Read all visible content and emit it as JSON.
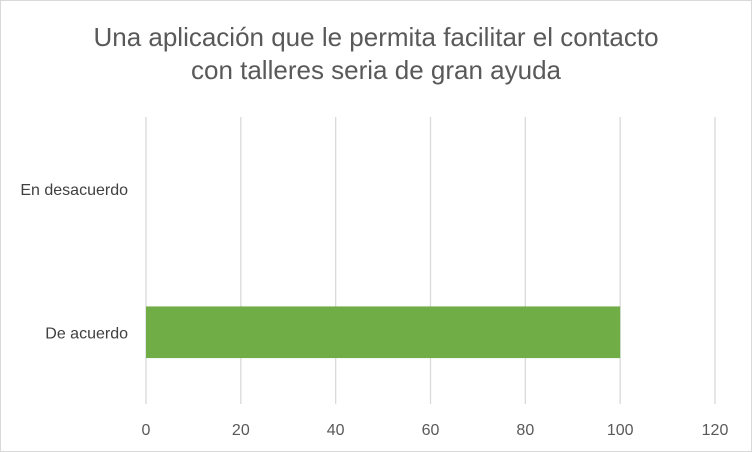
{
  "chart_data": {
    "type": "bar",
    "orientation": "horizontal",
    "title_lines": [
      "Una aplicación que le permita facilitar el contacto",
      "con talleres seria de gran ayuda"
    ],
    "categories": [
      "En desacuerdo",
      "De acuerdo"
    ],
    "values": [
      0,
      100
    ],
    "xlim": [
      0,
      120
    ],
    "xticks": [
      "0",
      "20",
      "40",
      "60",
      "80",
      "100",
      "120"
    ],
    "grid": true,
    "legend": "none",
    "colors": {
      "bar": "#70ad47",
      "grid": "#d9d9d9"
    }
  }
}
